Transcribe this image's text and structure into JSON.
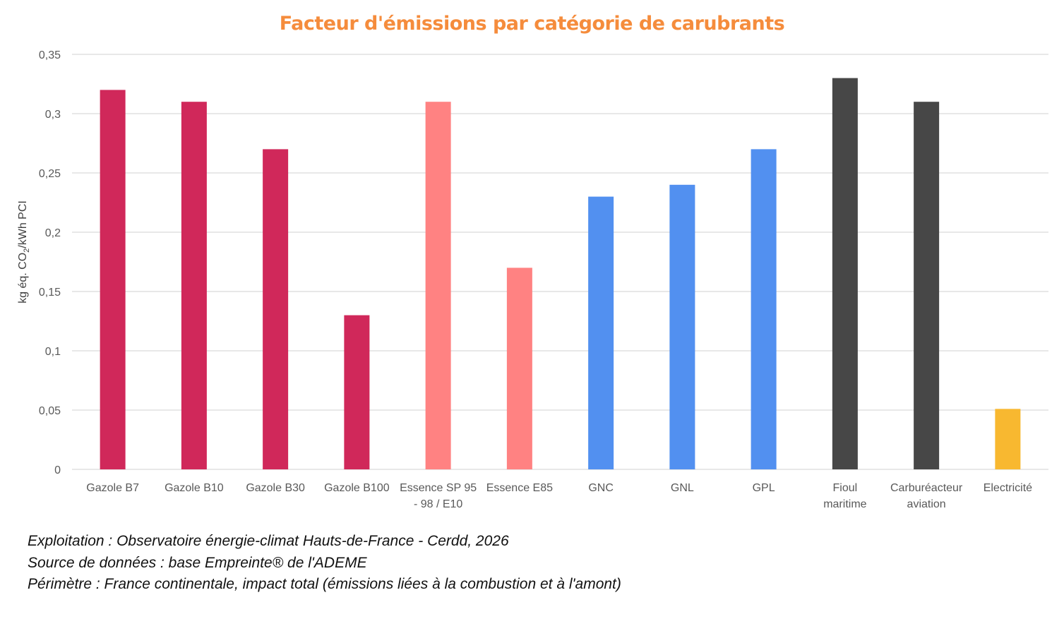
{
  "chart_data": {
    "type": "bar",
    "title": "Facteur d'émissions par catégorie de carubrants",
    "ylabel": {
      "pre": "kg éq. CO",
      "sub": "2",
      "post": "/kWh PCI"
    },
    "xlabel": "",
    "ylim": [
      0,
      0.35
    ],
    "yticks": [
      0,
      0.05,
      0.1,
      0.15,
      0.2,
      0.25,
      0.3,
      0.35
    ],
    "ytick_labels": [
      "0",
      "0,05",
      "0,1",
      "0,15",
      "0,2",
      "0,25",
      "0,3",
      "0,35"
    ],
    "grid": true,
    "categories": [
      [
        "Gazole B7"
      ],
      [
        "Gazole B10"
      ],
      [
        "Gazole B30"
      ],
      [
        "Gazole B100"
      ],
      [
        "Essence SP 95",
        "- 98 / E10"
      ],
      [
        "Essence E85"
      ],
      [
        "GNC"
      ],
      [
        "GNL"
      ],
      [
        "GPL"
      ],
      [
        "Fioul",
        "maritime"
      ],
      [
        "Carburéacteur",
        "aviation"
      ],
      [
        "Electricité"
      ]
    ],
    "values": [
      0.32,
      0.31,
      0.27,
      0.13,
      0.31,
      0.17,
      0.23,
      0.24,
      0.27,
      0.33,
      0.31,
      0.051
    ],
    "colors": [
      "#D0285A",
      "#D0285A",
      "#D0285A",
      "#D0285A",
      "#FF8282",
      "#FF8282",
      "#5290F0",
      "#5290F0",
      "#5290F0",
      "#474747",
      "#474747",
      "#F8B830"
    ]
  },
  "notes": [
    "Exploitation : Observatoire énergie-climat Hauts-de-France - Cerdd, 2026",
    "Source de données : base Empreinte® de l'ADEME",
    "Périmètre : France continentale, impact total (émissions liées à la combustion et à l'amont)"
  ]
}
